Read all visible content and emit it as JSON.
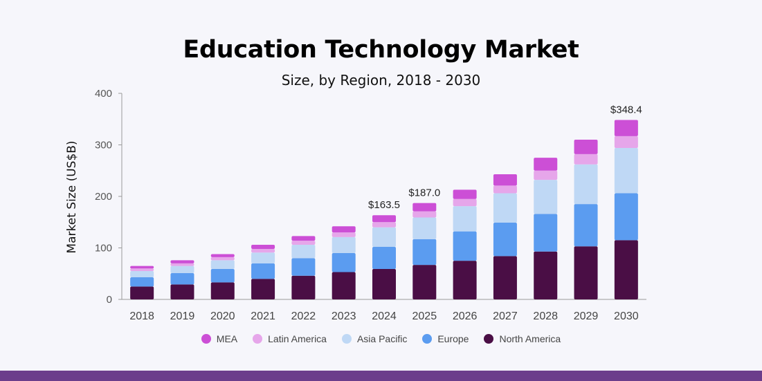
{
  "header": {
    "title": "Education Technology Market",
    "subtitle": "Size, by Region, 2018 - 2030"
  },
  "chart_data": {
    "type": "bar",
    "stacked": true,
    "title": "Education Technology Market",
    "subtitle": "Size, by Region, 2018 - 2030",
    "xlabel": "",
    "ylabel": "Market Size (US$B)",
    "ylim": [
      0,
      400
    ],
    "yticks": [
      0,
      100,
      200,
      300,
      400
    ],
    "categories": [
      "2018",
      "2019",
      "2020",
      "2021",
      "2022",
      "2023",
      "2024",
      "2025",
      "2026",
      "2027",
      "2028",
      "2029",
      "2030"
    ],
    "series": [
      {
        "name": "North America",
        "color": "#4a0e45",
        "values": [
          25,
          29,
          33,
          40,
          46,
          53,
          59,
          67,
          75,
          84,
          93,
          103,
          115
        ]
      },
      {
        "name": "Europe",
        "color": "#5b9cf0",
        "values": [
          18,
          22,
          26,
          30,
          34,
          37,
          43,
          50,
          57,
          65,
          73,
          82,
          91
        ]
      },
      {
        "name": "Asia Pacific",
        "color": "#bfd8f5",
        "values": [
          12,
          14,
          17,
          21,
          26,
          31,
          38,
          42,
          49,
          57,
          66,
          77,
          88
        ]
      },
      {
        "name": "Latin America",
        "color": "#e6a6ea",
        "values": [
          5,
          5,
          6,
          7,
          8,
          9,
          10,
          12,
          14,
          15,
          18,
          20,
          23
        ]
      },
      {
        "name": "MEA",
        "color": "#cc4fd6",
        "values": [
          5,
          6,
          6,
          8,
          9,
          12,
          13.5,
          16,
          18,
          22,
          25,
          28,
          31.4
        ]
      }
    ],
    "annotations": [
      {
        "category": "2024",
        "text": "$163.5"
      },
      {
        "category": "2025",
        "text": "$187.0"
      },
      {
        "category": "2030",
        "text": "$348.4"
      }
    ],
    "grid": false,
    "legend_position": "bottom"
  }
}
